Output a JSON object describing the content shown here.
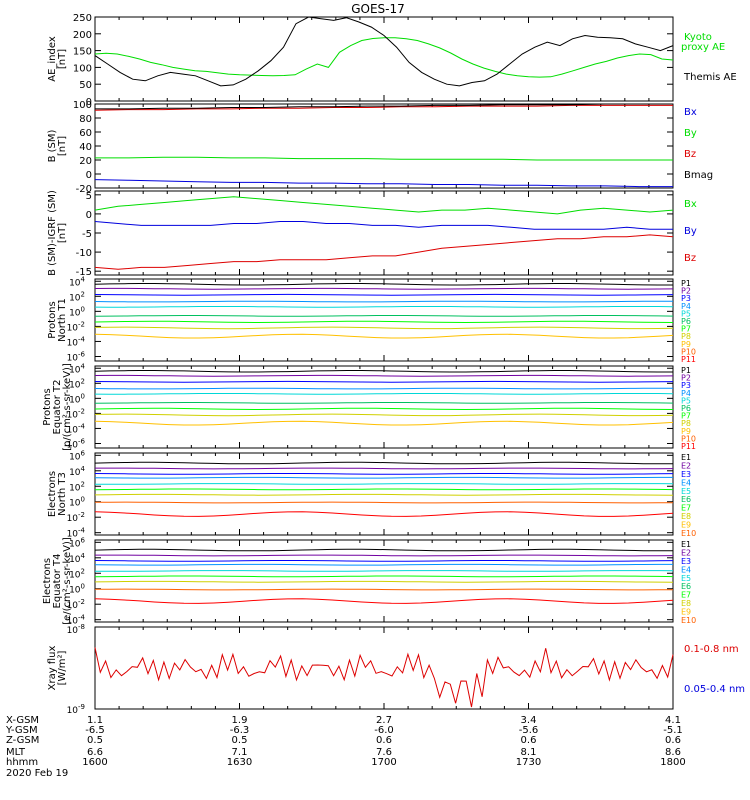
{
  "title": "GOES-17",
  "date": "2020 Feb 19",
  "colors": {
    "black": "#000000",
    "green": "#00dd00",
    "blue": "#0000dd",
    "red": "#dd0000",
    "p": [
      "#000000",
      "#7000a0",
      "#0000ff",
      "#0090ff",
      "#00d8d8",
      "#00c060",
      "#00ff00",
      "#d0d000",
      "#ffc000",
      "#ff6000",
      "#ff0000"
    ]
  },
  "orbit": {
    "row_labels": [
      "X-GSM",
      "Y-GSM",
      "Z-GSM",
      "MLT",
      "hhmm"
    ],
    "columns": [
      {
        "values": [
          "1.1",
          "-6.5",
          "0.5",
          "6.6",
          "1600"
        ]
      },
      {
        "values": [
          "1.9",
          "-6.3",
          "0.5",
          "7.1",
          "1630"
        ]
      },
      {
        "values": [
          "2.7",
          "-6.0",
          "0.6",
          "7.6",
          "1700"
        ]
      },
      {
        "values": [
          "3.4",
          "-5.6",
          "0.6",
          "8.1",
          "1730"
        ]
      },
      {
        "values": [
          "4.1",
          "-5.1",
          "0.6",
          "8.6",
          "1800"
        ]
      }
    ]
  },
  "chart_data": [
    {
      "type": "line",
      "ylabel": "AE_index [nT]",
      "ylim": [
        0,
        250
      ],
      "yticks": [
        "0",
        "50",
        "100",
        "150",
        "200",
        "250"
      ],
      "x_range": [
        "1600",
        "1800"
      ],
      "series": [
        {
          "name": "Kyoto proxy AE",
          "color": "#00dd00",
          "values": [
            140,
            142,
            140,
            133,
            125,
            115,
            108,
            100,
            95,
            90,
            88,
            84,
            80,
            78,
            77,
            76,
            75,
            76,
            78,
            95,
            110,
            100,
            145,
            165,
            180,
            186,
            188,
            188,
            185,
            180,
            170,
            158,
            143,
            125,
            110,
            98,
            88,
            80,
            75,
            72,
            71,
            72,
            80,
            90,
            100,
            110,
            118,
            128,
            135,
            140,
            138,
            125,
            122
          ]
        },
        {
          "name": "Themis AE",
          "color": "#000000",
          "values": [
            135,
            110,
            85,
            65,
            60,
            75,
            85,
            80,
            75,
            60,
            45,
            48,
            65,
            90,
            120,
            160,
            230,
            250,
            245,
            240,
            248,
            235,
            220,
            195,
            160,
            115,
            85,
            65,
            50,
            45,
            55,
            60,
            80,
            110,
            140,
            160,
            175,
            165,
            185,
            195,
            190,
            188,
            185,
            170,
            160,
            150,
            165
          ]
        }
      ],
      "legend": [
        "Kyoto",
        "proxy AE",
        "Themis AE"
      ]
    },
    {
      "type": "line",
      "ylabel": "B (SM) [nT]",
      "ylim": [
        -20,
        100
      ],
      "yticks": [
        "-20",
        "0",
        "20",
        "40",
        "60",
        "80",
        "100"
      ],
      "series": [
        {
          "name": "Bx",
          "color": "#0000dd",
          "values": [
            -8,
            -9,
            -10,
            -11,
            -12,
            -12,
            -13,
            -13,
            -14,
            -14,
            -15,
            -15,
            -16,
            -16,
            -17,
            -17,
            -18,
            -18
          ]
        },
        {
          "name": "By",
          "color": "#00dd00",
          "values": [
            23,
            23,
            24,
            24,
            23,
            23,
            22,
            22,
            22,
            21,
            21,
            21,
            21,
            20,
            20,
            20,
            20,
            20
          ]
        },
        {
          "name": "Bz",
          "color": "#dd0000",
          "values": [
            91,
            92,
            92,
            93,
            93,
            94,
            94,
            95,
            95,
            96,
            96,
            97,
            97,
            97,
            98,
            98,
            98,
            98
          ]
        },
        {
          "name": "Bmag",
          "color": "#000000",
          "values": [
            93,
            93,
            94,
            94,
            95,
            95,
            96,
            96,
            97,
            97,
            98,
            98,
            99,
            99,
            99,
            100,
            100,
            100
          ]
        }
      ]
    },
    {
      "type": "line",
      "ylabel": "B (SM)-IGRF (SM) [nT]",
      "ylim": [
        -16,
        6
      ],
      "yticks": [
        "-15",
        "-10",
        "-5",
        "0",
        "5"
      ],
      "series": [
        {
          "name": "Bx",
          "color": "#00dd00",
          "values": [
            1,
            2,
            2.5,
            3,
            3.5,
            4,
            4.5,
            4,
            3.5,
            3,
            2.5,
            2,
            1.5,
            1,
            0.5,
            1,
            1,
            1.5,
            1,
            0.5,
            0,
            1,
            1.5,
            1,
            0.5,
            1
          ]
        },
        {
          "name": "By",
          "color": "#0000dd",
          "values": [
            -2,
            -2.5,
            -3,
            -3,
            -3,
            -3,
            -2.5,
            -2.5,
            -2,
            -2,
            -2.5,
            -2.5,
            -3,
            -3,
            -3.5,
            -3,
            -3,
            -3,
            -3.5,
            -4,
            -4,
            -4,
            -4,
            -3.5,
            -4,
            -4
          ]
        },
        {
          "name": "Bz",
          "color": "#dd0000",
          "values": [
            -14,
            -14.5,
            -14,
            -14,
            -13.5,
            -13,
            -12.5,
            -12.5,
            -12,
            -12,
            -12,
            -11.5,
            -11,
            -11,
            -10,
            -9,
            -8.5,
            -8,
            -7.5,
            -7,
            -6.5,
            -6.5,
            -6,
            -6,
            -5.5,
            -6
          ]
        }
      ]
    },
    {
      "type": "line",
      "ylabel": "Protons North T1",
      "ylog": true,
      "yticks": [
        "10^4",
        "10^2",
        "10^0",
        "10^-2",
        "10^-4",
        "10^-6"
      ],
      "series_names": [
        "P1",
        "P2",
        "P3",
        "P4",
        "P5",
        "P6",
        "P7",
        "P8",
        "P9",
        "P10",
        "P11"
      ]
    },
    {
      "type": "line",
      "ylabel": "Protons Equator T2 [p/(cm²-s-sr-keV)]",
      "ylog": true,
      "yticks": [
        "10^4",
        "10^2",
        "10^0",
        "10^-2",
        "10^-4",
        "10^-6"
      ],
      "series_names": [
        "P1",
        "P2",
        "P3",
        "P4",
        "P5",
        "P6",
        "P7",
        "P8",
        "P9",
        "P10",
        "P11"
      ]
    },
    {
      "type": "line",
      "ylabel": "Electrons North T3",
      "ylog": true,
      "yticks": [
        "10^6",
        "10^4",
        "10^2",
        "10^0",
        "10^-2",
        "10^-4"
      ],
      "series_names": [
        "E1",
        "E2",
        "E3",
        "E4",
        "E5",
        "E6",
        "E7",
        "E8",
        "E9",
        "E10"
      ]
    },
    {
      "type": "line",
      "ylabel": "Electrons Equator T4 [e/(cm²-s-sr-keV)]",
      "ylog": true,
      "yticks": [
        "10^6",
        "10^4",
        "10^2",
        "10^0",
        "10^-2",
        "10^-4"
      ],
      "series_names": [
        "E1",
        "E2",
        "E3",
        "E4",
        "E5",
        "E6",
        "E7",
        "E8",
        "E9",
        "E10"
      ]
    },
    {
      "type": "line",
      "ylabel": "Xray flux [W/m²]",
      "ylog": true,
      "yticks": [
        "10^-8",
        "10^-9"
      ],
      "series": [
        {
          "name": "0.1-0.8 nm",
          "color": "#dd0000"
        },
        {
          "name": "0.05-0.4 nm",
          "color": "#0000dd"
        }
      ]
    }
  ]
}
